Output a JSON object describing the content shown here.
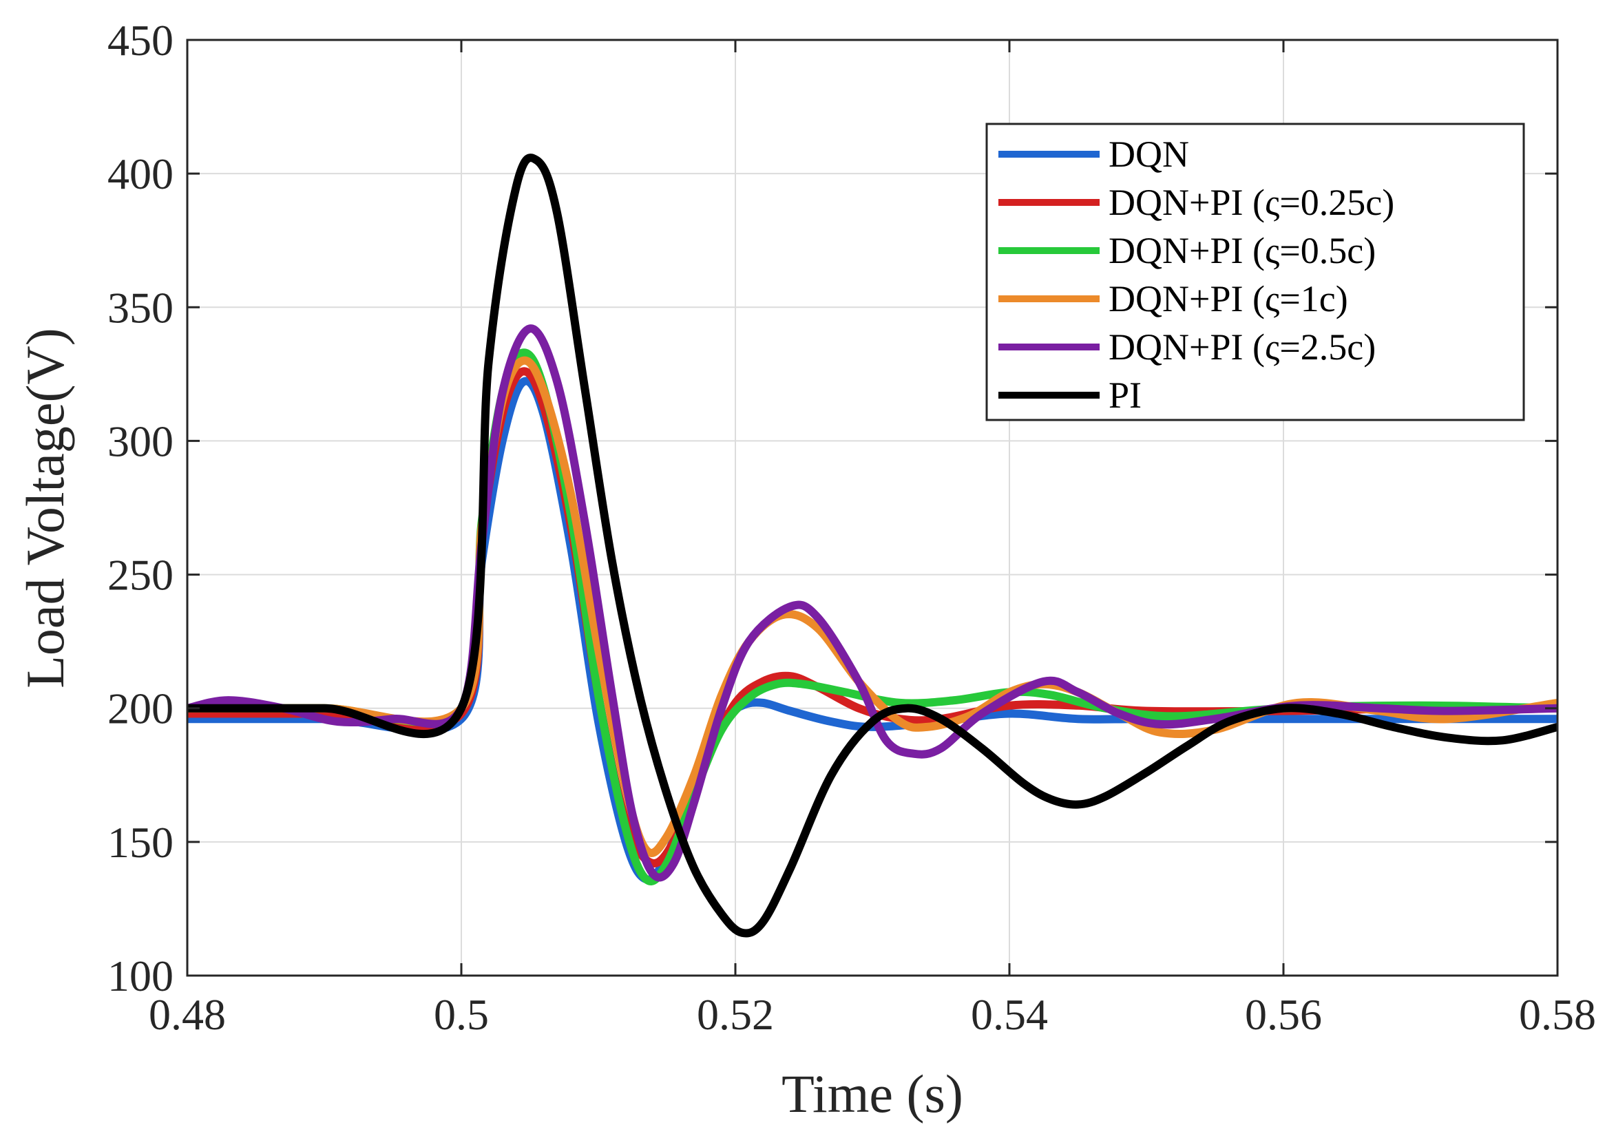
{
  "chart_data": {
    "type": "line",
    "title": "",
    "xlabel": "Time (s)",
    "ylabel": "Load Voltage(V)",
    "xlim": [
      0.48,
      0.58
    ],
    "ylim": [
      100,
      450
    ],
    "xticks": [
      0.48,
      0.5,
      0.52,
      0.54,
      0.56,
      0.58
    ],
    "xtick_labels": [
      "0.48",
      "0.5",
      "0.52",
      "0.54",
      "0.56",
      "0.58"
    ],
    "yticks": [
      100,
      150,
      200,
      250,
      300,
      350,
      400,
      450
    ],
    "ytick_labels": [
      "100",
      "150",
      "200",
      "250",
      "300",
      "350",
      "400",
      "450"
    ],
    "grid": true,
    "legend_position": "top-right",
    "series": [
      {
        "name": "DQN",
        "color": "#1f66d1",
        "x": [
          0.48,
          0.49,
          0.5,
          0.5015,
          0.503,
          0.5045,
          0.506,
          0.508,
          0.51,
          0.512,
          0.5135,
          0.515,
          0.517,
          0.519,
          0.5205,
          0.522,
          0.524,
          0.527,
          0.53,
          0.535,
          0.54,
          0.545,
          0.55,
          0.56,
          0.57,
          0.58
        ],
        "y": [
          196,
          196,
          196,
          255,
          300,
          322,
          310,
          260,
          195,
          150,
          136,
          145,
          172,
          195,
          201,
          202,
          199,
          195,
          193,
          195,
          198,
          196,
          196,
          196,
          196,
          196
        ]
      },
      {
        "name": "DQN+PI (ς=0.25c)",
        "color": "#d42020",
        "x": [
          0.48,
          0.49,
          0.5,
          0.5015,
          0.503,
          0.5045,
          0.506,
          0.508,
          0.51,
          0.512,
          0.514,
          0.516,
          0.518,
          0.52,
          0.522,
          0.524,
          0.526,
          0.529,
          0.532,
          0.535,
          0.54,
          0.545,
          0.55,
          0.56,
          0.57,
          0.58
        ],
        "y": [
          198,
          198,
          198,
          265,
          310,
          326,
          313,
          268,
          205,
          158,
          142,
          155,
          182,
          202,
          210,
          212,
          208,
          200,
          196,
          196,
          201,
          201,
          199,
          199,
          200,
          200
        ]
      },
      {
        "name": "DQN+PI (ς=0.5c)",
        "color": "#27c93a",
        "x": [
          0.48,
          0.49,
          0.5,
          0.5015,
          0.503,
          0.5045,
          0.506,
          0.508,
          0.51,
          0.512,
          0.5135,
          0.515,
          0.517,
          0.519,
          0.521,
          0.523,
          0.525,
          0.528,
          0.532,
          0.536,
          0.54,
          0.543,
          0.547,
          0.552,
          0.56,
          0.57,
          0.58
        ],
        "y": [
          200,
          200,
          200,
          270,
          318,
          333,
          320,
          272,
          205,
          155,
          136,
          142,
          168,
          192,
          204,
          209,
          209,
          206,
          202,
          203,
          206,
          205,
          200,
          197,
          200,
          201,
          200
        ]
      },
      {
        "name": "DQN+PI (ς=1c)",
        "color": "#ec8a2a",
        "x": [
          0.48,
          0.49,
          0.5,
          0.5015,
          0.503,
          0.5045,
          0.506,
          0.508,
          0.51,
          0.512,
          0.5135,
          0.515,
          0.517,
          0.519,
          0.521,
          0.5235,
          0.526,
          0.529,
          0.532,
          0.534,
          0.537,
          0.54,
          0.5425,
          0.545,
          0.548,
          0.551,
          0.555,
          0.561,
          0.567,
          0.572,
          0.58
        ],
        "y": [
          200,
          200,
          200,
          268,
          315,
          330,
          319,
          280,
          222,
          170,
          147,
          152,
          175,
          205,
          225,
          235,
          230,
          210,
          195,
          193,
          197,
          206,
          209,
          206,
          198,
          191,
          192,
          202,
          199,
          196,
          202
        ]
      },
      {
        "name": "DQN+PI (ς=2.5c)",
        "color": "#7a1fa2",
        "x": [
          0.48,
          0.483,
          0.487,
          0.491,
          0.495,
          0.5,
          0.5015,
          0.503,
          0.505,
          0.507,
          0.509,
          0.511,
          0.5125,
          0.514,
          0.5155,
          0.517,
          0.519,
          0.521,
          0.524,
          0.526,
          0.529,
          0.531,
          0.533,
          0.535,
          0.538,
          0.5425,
          0.545,
          0.548,
          0.551,
          0.555,
          0.561,
          0.567,
          0.572,
          0.58
        ],
        "y": [
          200,
          203,
          200,
          195,
          196,
          200,
          262,
          318,
          342,
          322,
          270,
          205,
          160,
          138,
          142,
          165,
          200,
          225,
          238,
          234,
          210,
          188,
          183,
          185,
          198,
          210,
          206,
          198,
          194,
          196,
          201,
          200,
          199,
          200
        ]
      },
      {
        "name": "PI",
        "color": "#000000",
        "x": [
          0.48,
          0.49,
          0.5,
          0.502,
          0.504,
          0.5055,
          0.507,
          0.509,
          0.511,
          0.513,
          0.515,
          0.517,
          0.519,
          0.5205,
          0.522,
          0.524,
          0.527,
          0.53,
          0.5325,
          0.535,
          0.538,
          0.541,
          0.543,
          0.545,
          0.547,
          0.55,
          0.553,
          0.556,
          0.56,
          0.564,
          0.568,
          0.572,
          0.576,
          0.58
        ],
        "y": [
          200,
          200,
          200,
          330,
          395,
          405,
          385,
          320,
          255,
          205,
          168,
          140,
          123,
          116,
          120,
          140,
          175,
          195,
          200,
          196,
          185,
          172,
          166,
          164,
          167,
          176,
          186,
          195,
          200,
          198,
          193,
          189,
          188,
          193
        ]
      }
    ]
  }
}
